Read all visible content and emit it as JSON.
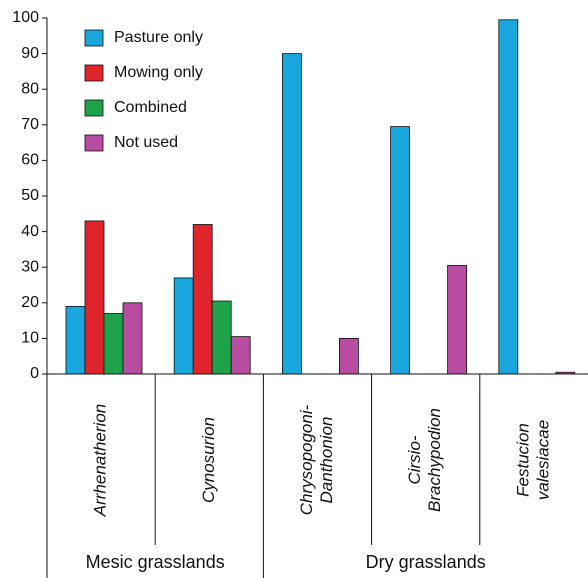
{
  "chart_data": {
    "type": "bar",
    "categories": [
      [
        "Arrhenatherion"
      ],
      [
        "Cynosurion"
      ],
      [
        "Chrysopogoni-",
        "Danthonion"
      ],
      [
        "Cirsio-",
        "Brachypodion"
      ],
      [
        "Festucion",
        "valesiacae"
      ]
    ],
    "series": [
      {
        "name": "Pasture only",
        "color": "#1aa7dd",
        "values": [
          19,
          27,
          90,
          69.5,
          99.5
        ]
      },
      {
        "name": "Mowing only",
        "color": "#e0242b",
        "values": [
          43,
          42,
          0,
          0,
          0
        ]
      },
      {
        "name": "Combined",
        "color": "#1ea34a",
        "values": [
          17,
          20.5,
          0,
          0,
          0
        ]
      },
      {
        "name": "Not used",
        "color": "#b84ca0",
        "values": [
          20,
          10.5,
          10,
          30.5,
          0.5
        ]
      }
    ],
    "groups": [
      "Mesic grasslands",
      "Dry grasslands"
    ],
    "ylim": [
      0,
      100
    ],
    "yticks": [
      0,
      10,
      20,
      30,
      40,
      50,
      60,
      70,
      80,
      90,
      100
    ],
    "legend": "upper-left"
  }
}
